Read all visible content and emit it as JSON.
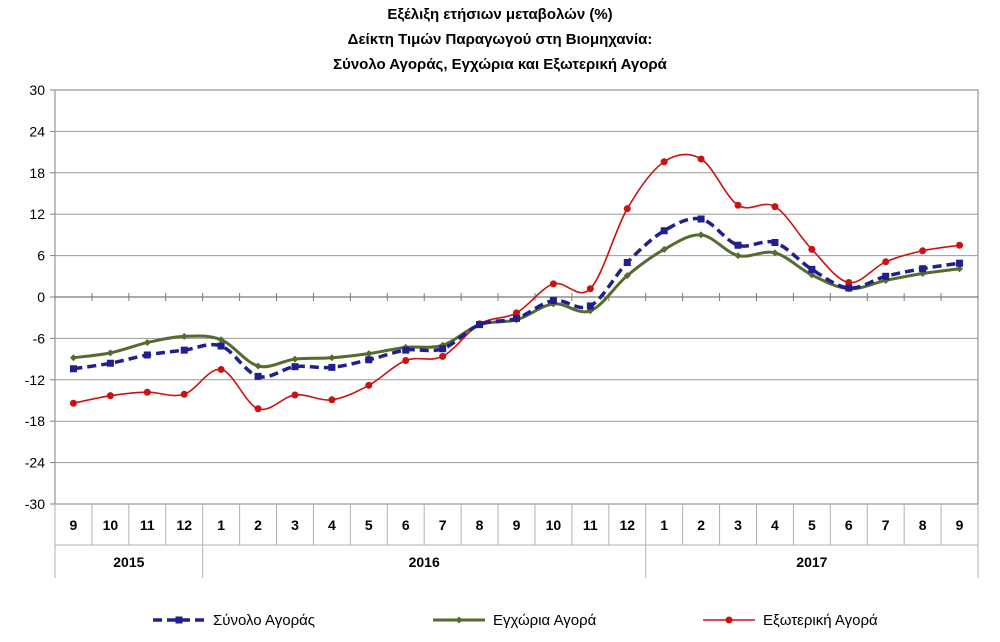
{
  "chart_data": {
    "type": "line",
    "title": [
      "Εξέλιξη ετήσιων μεταβολών (%)",
      "Δείκτη Τιμών Παραγωγού στη Βιομηχανία:",
      "Σύνολο Αγοράς, Εγχώρια και Εξωτερική Αγορά"
    ],
    "months": [
      "9",
      "10",
      "11",
      "12",
      "1",
      "2",
      "3",
      "4",
      "5",
      "6",
      "7",
      "8",
      "9",
      "10",
      "11",
      "12",
      "1",
      "2",
      "3",
      "4",
      "5",
      "6",
      "7",
      "8",
      "9"
    ],
    "years": [
      {
        "label": "2015",
        "start": 0,
        "end": 3
      },
      {
        "label": "2016",
        "start": 4,
        "end": 15
      },
      {
        "label": "2017",
        "start": 16,
        "end": 24
      }
    ],
    "ylim": [
      -30,
      30
    ],
    "yticks": [
      30,
      24,
      18,
      12,
      6,
      0,
      -6,
      -12,
      -18,
      -24,
      -30
    ],
    "grid": true,
    "legend_position": "bottom",
    "series": [
      {
        "name": "Σύνολο Αγοράς",
        "color": "#1f1f8f",
        "values": [
          -10.4,
          -9.6,
          -8.4,
          -7.7,
          -7.1,
          -11.5,
          -10.1,
          -10.2,
          -9.1,
          -7.7,
          -7.5,
          -4.0,
          -3.1,
          -0.5,
          -1.3,
          5.0,
          9.6,
          11.3,
          7.5,
          7.9,
          4.0,
          1.3,
          3.0,
          4.1,
          4.9
        ]
      },
      {
        "name": "Εγχώρια Αγορά",
        "color": "#556b2f",
        "values": [
          -8.8,
          -8.1,
          -6.6,
          -5.7,
          -6.2,
          -10.0,
          -9.0,
          -8.8,
          -8.2,
          -7.3,
          -7.0,
          -4.0,
          -3.3,
          -1.0,
          -2.0,
          3.1,
          6.9,
          9.0,
          6.0,
          6.4,
          3.2,
          1.2,
          2.4,
          3.4,
          4.1
        ]
      },
      {
        "name": "Εξωτερική Αγορά",
        "color": "#cc1111",
        "values": [
          -15.4,
          -14.3,
          -13.8,
          -14.1,
          -10.5,
          -16.2,
          -14.2,
          -14.9,
          -12.8,
          -9.2,
          -8.6,
          -3.9,
          -2.3,
          1.9,
          1.2,
          12.8,
          19.6,
          20.0,
          13.3,
          13.1,
          6.9,
          2.1,
          5.1,
          6.7,
          7.5
        ]
      }
    ]
  }
}
